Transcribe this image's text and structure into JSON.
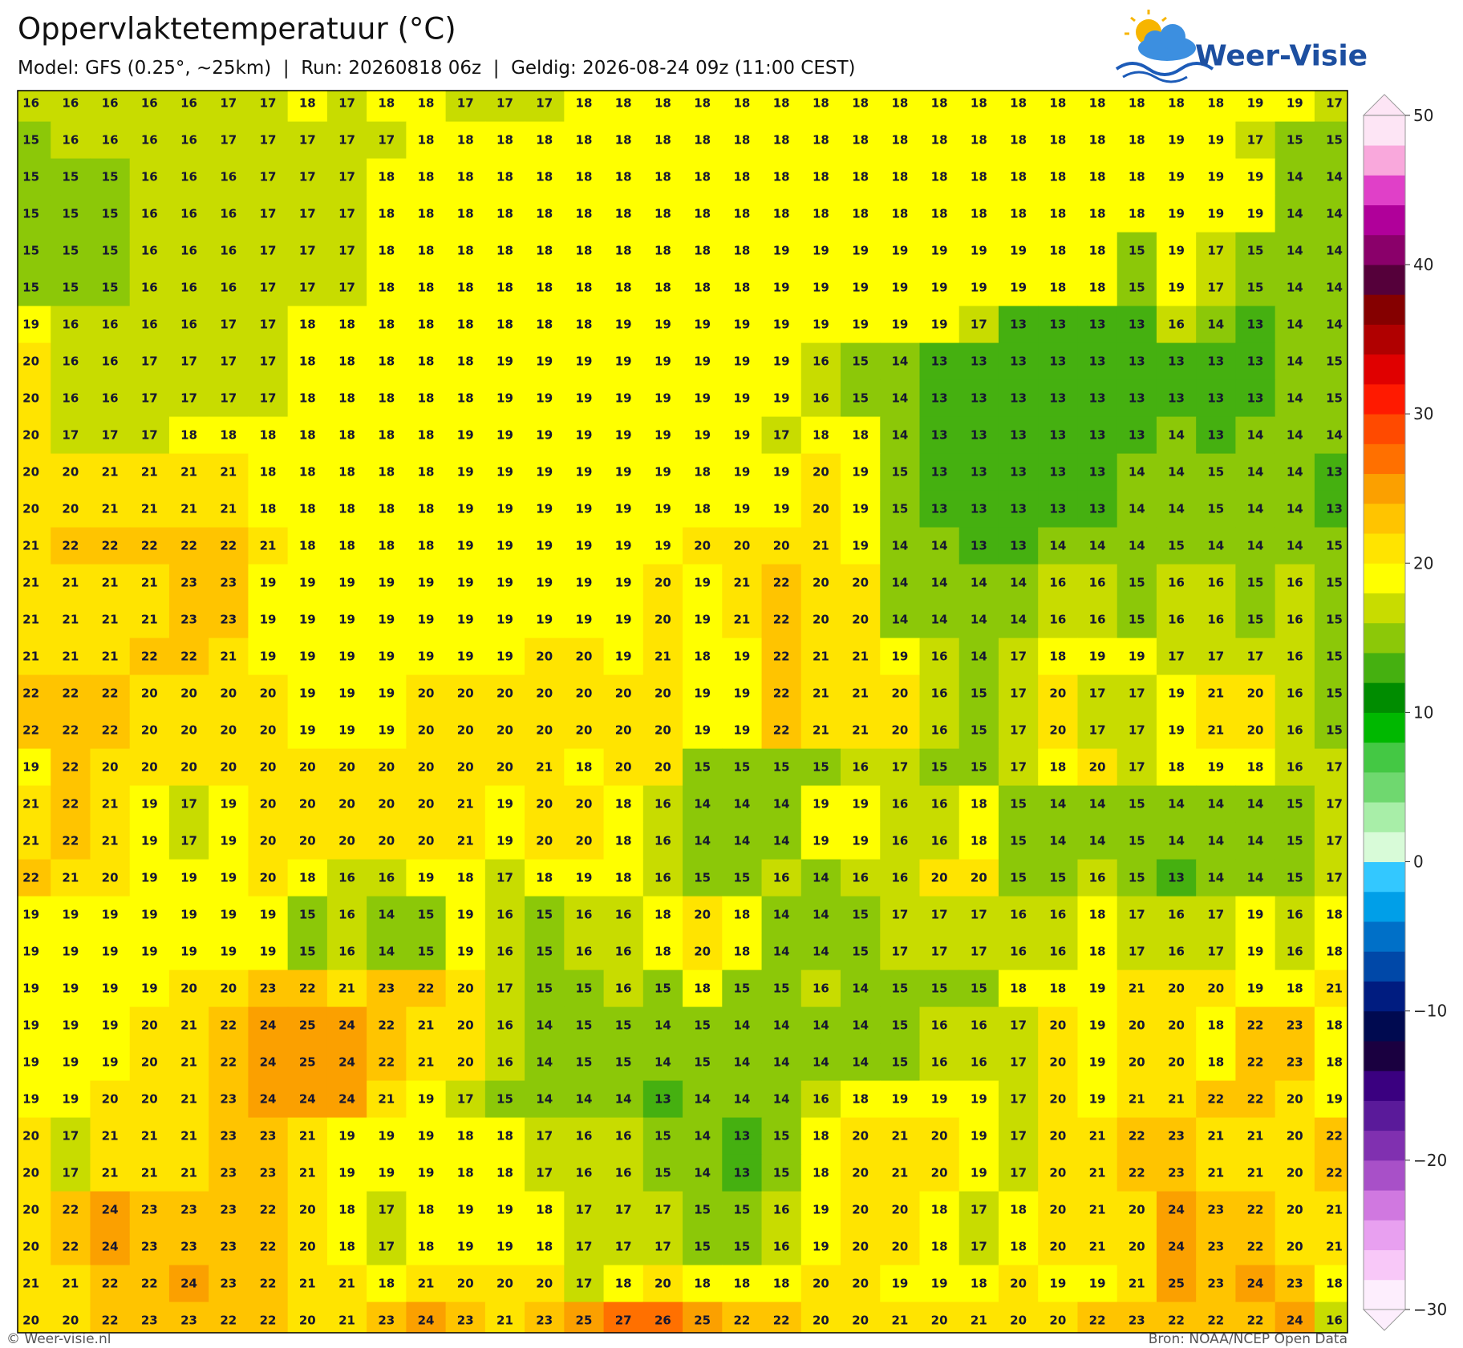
{
  "header": {
    "title": "Oppervlaktetemperatuur (°C)",
    "subtitle": "Model: GFS (0.25°, ~25km)  |  Run: 20260818 06z  |  Geldig: 2026-08-24 09z (11:00 CEST)",
    "logo": "Weer-Visie"
  },
  "map": {
    "rows": [
      [
        16,
        16,
        16,
        16,
        16,
        17,
        17,
        18,
        17,
        18,
        18,
        17,
        17,
        17,
        18,
        18,
        18,
        18,
        18,
        18,
        18,
        18,
        18,
        18,
        18,
        18,
        18,
        18,
        18,
        18,
        18,
        19,
        19,
        17
      ],
      [
        15,
        16,
        16,
        16,
        16,
        17,
        17,
        17,
        17,
        17,
        18,
        18,
        18,
        18,
        18,
        18,
        18,
        18,
        18,
        18,
        18,
        18,
        18,
        18,
        18,
        18,
        18,
        18,
        18,
        19,
        19,
        17,
        15,
        15
      ],
      [
        15,
        15,
        15,
        16,
        16,
        16,
        17,
        17,
        17,
        18,
        18,
        18,
        18,
        18,
        18,
        18,
        18,
        18,
        18,
        18,
        18,
        18,
        18,
        18,
        18,
        18,
        18,
        18,
        18,
        19,
        19,
        19,
        14,
        14
      ],
      [
        15,
        15,
        15,
        16,
        16,
        16,
        17,
        17,
        17,
        18,
        18,
        18,
        18,
        18,
        18,
        18,
        18,
        18,
        18,
        18,
        18,
        18,
        18,
        18,
        18,
        18,
        18,
        18,
        18,
        19,
        19,
        19,
        14,
        14
      ],
      [
        15,
        15,
        15,
        16,
        16,
        16,
        17,
        17,
        17,
        18,
        18,
        18,
        18,
        18,
        18,
        18,
        18,
        18,
        18,
        19,
        19,
        19,
        19,
        19,
        19,
        19,
        18,
        18,
        15,
        19,
        17,
        15,
        14,
        14
      ],
      [
        15,
        15,
        15,
        16,
        16,
        16,
        17,
        17,
        17,
        18,
        18,
        18,
        18,
        18,
        18,
        18,
        18,
        18,
        18,
        19,
        19,
        19,
        19,
        19,
        19,
        19,
        18,
        18,
        15,
        19,
        17,
        15,
        14,
        14
      ],
      [
        19,
        16,
        16,
        16,
        16,
        17,
        17,
        18,
        18,
        18,
        18,
        18,
        18,
        18,
        18,
        19,
        19,
        19,
        19,
        19,
        19,
        19,
        19,
        19,
        17,
        13,
        13,
        13,
        13,
        16,
        14,
        13,
        14,
        14
      ],
      [
        20,
        16,
        16,
        17,
        17,
        17,
        17,
        18,
        18,
        18,
        18,
        18,
        19,
        19,
        19,
        19,
        19,
        19,
        19,
        19,
        16,
        15,
        14,
        13,
        13,
        13,
        13,
        13,
        13,
        13,
        13,
        13,
        14,
        15
      ],
      [
        20,
        16,
        16,
        17,
        17,
        17,
        17,
        18,
        18,
        18,
        18,
        18,
        19,
        19,
        19,
        19,
        19,
        19,
        19,
        19,
        16,
        15,
        14,
        13,
        13,
        13,
        13,
        13,
        13,
        13,
        13,
        13,
        14,
        15
      ],
      [
        20,
        17,
        17,
        17,
        18,
        18,
        18,
        18,
        18,
        18,
        18,
        19,
        19,
        19,
        19,
        19,
        19,
        19,
        19,
        17,
        18,
        18,
        14,
        13,
        13,
        13,
        13,
        13,
        13,
        14,
        13,
        14,
        14,
        14
      ],
      [
        20,
        20,
        21,
        21,
        21,
        21,
        18,
        18,
        18,
        18,
        18,
        19,
        19,
        19,
        19,
        19,
        19,
        18,
        19,
        19,
        20,
        19,
        15,
        13,
        13,
        13,
        13,
        13,
        14,
        14,
        15,
        14,
        14,
        13
      ],
      [
        20,
        20,
        21,
        21,
        21,
        21,
        18,
        18,
        18,
        18,
        18,
        19,
        19,
        19,
        19,
        19,
        19,
        18,
        19,
        19,
        20,
        19,
        15,
        13,
        13,
        13,
        13,
        13,
        14,
        14,
        15,
        14,
        14,
        13
      ],
      [
        21,
        22,
        22,
        22,
        22,
        22,
        21,
        18,
        18,
        18,
        18,
        19,
        19,
        19,
        19,
        19,
        19,
        20,
        20,
        20,
        21,
        19,
        14,
        14,
        13,
        13,
        14,
        14,
        14,
        15,
        14,
        14,
        14,
        15
      ],
      [
        21,
        21,
        21,
        21,
        23,
        23,
        19,
        19,
        19,
        19,
        19,
        19,
        19,
        19,
        19,
        19,
        20,
        19,
        21,
        22,
        20,
        20,
        14,
        14,
        14,
        14,
        16,
        16,
        15,
        16,
        16,
        15,
        16,
        15
      ],
      [
        21,
        21,
        21,
        21,
        23,
        23,
        19,
        19,
        19,
        19,
        19,
        19,
        19,
        19,
        19,
        19,
        20,
        19,
        21,
        22,
        20,
        20,
        14,
        14,
        14,
        14,
        16,
        16,
        15,
        16,
        16,
        15,
        16,
        15
      ],
      [
        21,
        21,
        21,
        22,
        22,
        21,
        19,
        19,
        19,
        19,
        19,
        19,
        19,
        20,
        20,
        19,
        21,
        18,
        19,
        22,
        21,
        21,
        19,
        16,
        14,
        17,
        18,
        19,
        19,
        17,
        17,
        17,
        16,
        15
      ],
      [
        22,
        22,
        22,
        20,
        20,
        20,
        20,
        19,
        19,
        19,
        20,
        20,
        20,
        20,
        20,
        20,
        20,
        19,
        19,
        22,
        21,
        21,
        20,
        16,
        15,
        17,
        20,
        17,
        17,
        19,
        21,
        20,
        16,
        15
      ],
      [
        22,
        22,
        22,
        20,
        20,
        20,
        20,
        19,
        19,
        19,
        20,
        20,
        20,
        20,
        20,
        20,
        20,
        19,
        19,
        22,
        21,
        21,
        20,
        16,
        15,
        17,
        20,
        17,
        17,
        19,
        21,
        20,
        16,
        15
      ],
      [
        19,
        22,
        20,
        20,
        20,
        20,
        20,
        20,
        20,
        20,
        20,
        20,
        20,
        21,
        18,
        20,
        20,
        15,
        15,
        15,
        15,
        16,
        17,
        15,
        15,
        17,
        18,
        20,
        17,
        18,
        19,
        18,
        16,
        17
      ],
      [
        21,
        22,
        21,
        19,
        17,
        19,
        20,
        20,
        20,
        20,
        20,
        21,
        19,
        20,
        20,
        18,
        16,
        14,
        14,
        14,
        19,
        19,
        16,
        16,
        18,
        15,
        14,
        14,
        15,
        14,
        14,
        14,
        15,
        17
      ],
      [
        21,
        22,
        21,
        19,
        17,
        19,
        20,
        20,
        20,
        20,
        20,
        21,
        19,
        20,
        20,
        18,
        16,
        14,
        14,
        14,
        19,
        19,
        16,
        16,
        18,
        15,
        14,
        14,
        15,
        14,
        14,
        14,
        15,
        17
      ],
      [
        22,
        21,
        20,
        19,
        19,
        19,
        20,
        18,
        16,
        16,
        19,
        18,
        17,
        18,
        19,
        18,
        16,
        15,
        15,
        16,
        14,
        16,
        16,
        20,
        20,
        15,
        15,
        16,
        15,
        13,
        14,
        14,
        15,
        17
      ],
      [
        19,
        19,
        19,
        19,
        19,
        19,
        19,
        15,
        16,
        14,
        15,
        19,
        16,
        15,
        16,
        16,
        18,
        20,
        18,
        14,
        14,
        15,
        17,
        17,
        17,
        16,
        16,
        18,
        17,
        16,
        17,
        19,
        16,
        18
      ],
      [
        19,
        19,
        19,
        19,
        19,
        19,
        19,
        15,
        16,
        14,
        15,
        19,
        16,
        15,
        16,
        16,
        18,
        20,
        18,
        14,
        14,
        15,
        17,
        17,
        17,
        16,
        16,
        18,
        17,
        16,
        17,
        19,
        16,
        18
      ],
      [
        19,
        19,
        19,
        19,
        20,
        20,
        23,
        22,
        21,
        23,
        22,
        20,
        17,
        15,
        15,
        16,
        15,
        18,
        15,
        15,
        16,
        14,
        15,
        15,
        15,
        18,
        18,
        19,
        21,
        20,
        20,
        19,
        18,
        21
      ],
      [
        19,
        19,
        19,
        20,
        21,
        22,
        24,
        25,
        24,
        22,
        21,
        20,
        16,
        14,
        15,
        15,
        14,
        15,
        14,
        14,
        14,
        14,
        15,
        16,
        16,
        17,
        20,
        19,
        20,
        20,
        18,
        22,
        23,
        18
      ],
      [
        19,
        19,
        19,
        20,
        21,
        22,
        24,
        25,
        24,
        22,
        21,
        20,
        16,
        14,
        15,
        15,
        14,
        15,
        14,
        14,
        14,
        14,
        15,
        16,
        16,
        17,
        20,
        19,
        20,
        20,
        18,
        22,
        23,
        18
      ],
      [
        19,
        19,
        20,
        20,
        21,
        23,
        24,
        24,
        24,
        21,
        19,
        17,
        15,
        14,
        14,
        14,
        13,
        14,
        14,
        14,
        16,
        18,
        19,
        19,
        19,
        17,
        20,
        19,
        21,
        21,
        22,
        22,
        20,
        19
      ],
      [
        20,
        17,
        21,
        21,
        21,
        23,
        23,
        21,
        19,
        19,
        19,
        18,
        18,
        17,
        16,
        16,
        15,
        14,
        13,
        15,
        18,
        20,
        21,
        20,
        19,
        17,
        20,
        21,
        22,
        23,
        21,
        21,
        20,
        22
      ],
      [
        20,
        17,
        21,
        21,
        21,
        23,
        23,
        21,
        19,
        19,
        19,
        18,
        18,
        17,
        16,
        16,
        15,
        14,
        13,
        15,
        18,
        20,
        21,
        20,
        19,
        17,
        20,
        21,
        22,
        23,
        21,
        21,
        20,
        22
      ],
      [
        20,
        22,
        24,
        23,
        23,
        23,
        22,
        20,
        18,
        17,
        18,
        19,
        19,
        18,
        17,
        17,
        17,
        15,
        15,
        16,
        19,
        20,
        20,
        18,
        17,
        18,
        20,
        21,
        20,
        24,
        23,
        22,
        20,
        21
      ],
      [
        20,
        22,
        24,
        23,
        23,
        23,
        22,
        20,
        18,
        17,
        18,
        19,
        19,
        18,
        17,
        17,
        17,
        15,
        15,
        16,
        19,
        20,
        20,
        18,
        17,
        18,
        20,
        21,
        20,
        24,
        23,
        22,
        20,
        21
      ],
      [
        21,
        21,
        22,
        22,
        24,
        23,
        22,
        21,
        21,
        18,
        21,
        20,
        20,
        20,
        17,
        18,
        20,
        18,
        18,
        18,
        20,
        20,
        19,
        19,
        18,
        20,
        19,
        19,
        21,
        25,
        23,
        24,
        23,
        18
      ],
      [
        20,
        20,
        22,
        23,
        23,
        22,
        22,
        20,
        21,
        23,
        24,
        23,
        21,
        23,
        25,
        27,
        26,
        25,
        22,
        22,
        20,
        20,
        21,
        20,
        21,
        20,
        20,
        22,
        23,
        22,
        22,
        22,
        24,
        16
      ]
    ],
    "colorbar": {
      "lim": [
        -30,
        50
      ],
      "ticks": [
        50,
        40,
        30,
        20,
        10,
        0,
        {
          "value": -10,
          "label": "−10"
        },
        {
          "value": -20,
          "label": "−20"
        },
        {
          "value": -30,
          "label": "−30"
        }
      ],
      "colors": [
        "#fdeefd",
        "#f8c8f8",
        "#e8a0f0",
        "#d078e0",
        "#a850c8",
        "#8030b0",
        "#5a1a9a",
        "#3a0080",
        "#1a0040",
        "#000a50",
        "#001c80",
        "#0048a8",
        "#0070c8",
        "#009fe8",
        "#33c8ff",
        "#d8fbd8",
        "#a8eea8",
        "#6fd86f",
        "#44c844",
        "#00b800",
        "#008c00",
        "#45b010",
        "#8cc808",
        "#c8dc00",
        "#ffff00",
        "#ffe400",
        "#ffc400",
        "#fba000",
        "#ff7000",
        "#ff4a00",
        "#ff1a00",
        "#e00000",
        "#b00000",
        "#850000",
        "#55003a",
        "#8a006a",
        "#b0009a",
        "#e040c8",
        "#f9a8dc",
        "#fde5f5"
      ]
    }
  },
  "footer": {
    "left": "© Weer-visie.nl",
    "right": "Bron: NOAA/NCEP Open Data"
  }
}
